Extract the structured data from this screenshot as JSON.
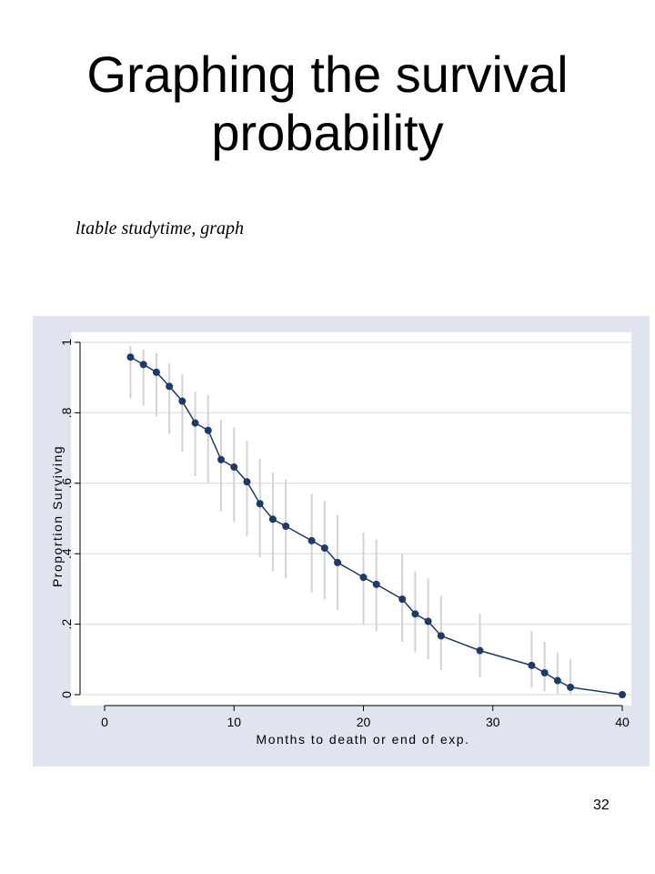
{
  "slide": {
    "title_line1": "Graphing the survival",
    "title_line2": "probability",
    "command": "ltable studytime, graph",
    "slide_number": "32"
  },
  "colors": {
    "panel_bg": "#dfe4ee",
    "plot_bg": "#ffffff",
    "grid": "#dfe4ee",
    "series": "#1f3a68",
    "ci": "#d3d3d3"
  },
  "chart_data": {
    "type": "line",
    "title": "",
    "xlabel": "Months to death or end of exp.",
    "ylabel": "Proportion Surviving",
    "xlim": [
      0,
      40
    ],
    "ylim": [
      0,
      1
    ],
    "x_ticks": [
      0,
      10,
      20,
      30,
      40
    ],
    "x_tick_labels": [
      "0",
      "10",
      "20",
      "30",
      "40"
    ],
    "y_ticks": [
      0,
      0.2,
      0.4,
      0.6,
      0.8,
      1
    ],
    "y_tick_labels": [
      "0",
      ".2",
      ".4",
      ".6",
      ".8",
      "1"
    ],
    "grid": true,
    "legend": "none",
    "series": [
      {
        "x": [
          2,
          3,
          4,
          5,
          6,
          7,
          8,
          9,
          10,
          11,
          12,
          13,
          14,
          16,
          17,
          18,
          20,
          21,
          23,
          24,
          25,
          26,
          29,
          33,
          34,
          35,
          36,
          40
        ],
        "y": [
          0.958,
          0.937,
          0.915,
          0.875,
          0.833,
          0.771,
          0.75,
          0.667,
          0.646,
          0.604,
          0.542,
          0.498,
          0.478,
          0.437,
          0.416,
          0.375,
          0.333,
          0.313,
          0.271,
          0.229,
          0.208,
          0.167,
          0.125,
          0.083,
          0.062,
          0.04,
          0.021,
          0.0
        ],
        "ci_lower": [
          0.84,
          0.82,
          0.79,
          0.74,
          0.69,
          0.62,
          0.6,
          0.52,
          0.49,
          0.45,
          0.39,
          0.35,
          0.33,
          0.29,
          0.27,
          0.24,
          0.2,
          0.18,
          0.15,
          0.12,
          0.1,
          0.07,
          0.05,
          0.02,
          0.01,
          0.0,
          0.0,
          0.0
        ],
        "ci_upper": [
          0.99,
          0.98,
          0.97,
          0.94,
          0.91,
          0.86,
          0.85,
          0.78,
          0.76,
          0.72,
          0.67,
          0.63,
          0.61,
          0.57,
          0.55,
          0.51,
          0.46,
          0.44,
          0.4,
          0.35,
          0.33,
          0.28,
          0.23,
          0.18,
          0.15,
          0.12,
          0.1,
          0.0
        ]
      }
    ]
  }
}
